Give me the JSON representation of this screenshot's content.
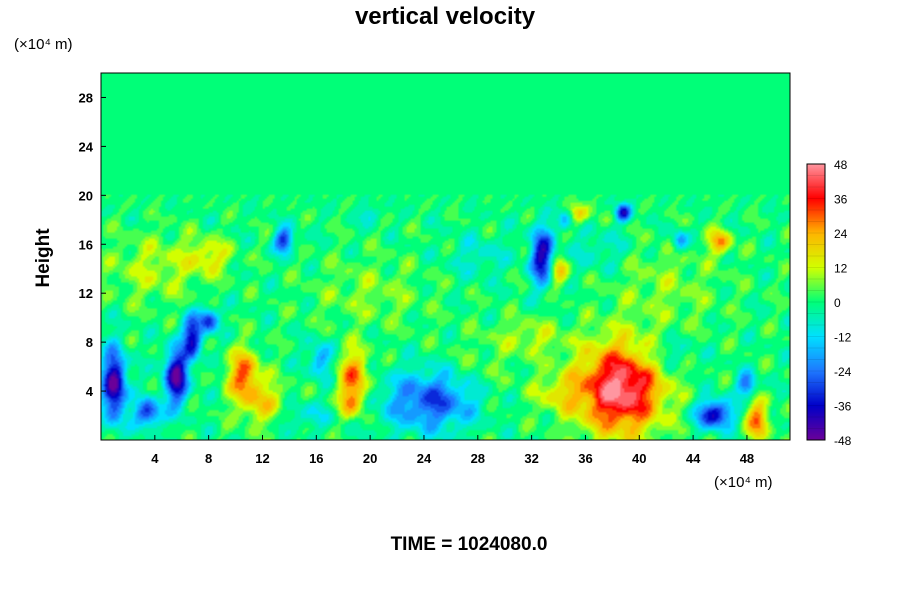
{
  "chart_data": {
    "type": "heatmap",
    "title": "vertical velocity",
    "xlabel_units": "(×10⁴ m)",
    "ylabel": "Height",
    "ylabel_units": "(×10⁴ m)",
    "xlim": [
      0,
      51.2
    ],
    "ylim": [
      0,
      30
    ],
    "x_ticks": [
      "4",
      "8",
      "12",
      "16",
      "20",
      "24",
      "28",
      "32",
      "36",
      "40",
      "44",
      "48"
    ],
    "x_tick_values": [
      4,
      8,
      12,
      16,
      20,
      24,
      28,
      32,
      36,
      40,
      44,
      48
    ],
    "y_ticks": [
      "4",
      "8",
      "12",
      "16",
      "20",
      "24",
      "28"
    ],
    "y_tick_values": [
      4,
      8,
      12,
      16,
      20,
      24,
      28
    ],
    "colorbar": {
      "ticks": [
        "48",
        "36",
        "24",
        "12",
        "0",
        "-12",
        "-24",
        "-36",
        "-48"
      ],
      "tick_values": [
        48,
        36,
        24,
        12,
        0,
        -12,
        -24,
        -36,
        -48
      ],
      "range": [
        -48,
        48
      ],
      "colormap": [
        "#6a0099",
        "#0000c8",
        "#1e78ff",
        "#00e0ff",
        "#00ff78",
        "#d2ff00",
        "#ffb400",
        "#ff0000",
        "#ff96a0"
      ]
    },
    "features": [
      {
        "x": 38.6,
        "y": 4.2,
        "sx": 2.2,
        "sy": 2.6,
        "value": 48
      },
      {
        "x": 10.6,
        "y": 5.4,
        "sx": 0.8,
        "sy": 1.4,
        "value": 30
      },
      {
        "x": 12.0,
        "y": 3.0,
        "sx": 1.3,
        "sy": 1.3,
        "value": 18
      },
      {
        "x": 18.8,
        "y": 5.2,
        "sx": 0.8,
        "sy": 1.5,
        "value": 28
      },
      {
        "x": 18.6,
        "y": 3.0,
        "sx": 0.7,
        "sy": 0.9,
        "value": 18
      },
      {
        "x": 32.0,
        "y": 8.4,
        "sx": 1.8,
        "sy": 1.1,
        "value": 10
      },
      {
        "x": 34.0,
        "y": 3.8,
        "sx": 1.4,
        "sy": 1.2,
        "value": 12
      },
      {
        "x": 48.8,
        "y": 1.6,
        "sx": 0.6,
        "sy": 1.2,
        "value": 28
      },
      {
        "x": 46.0,
        "y": 16.2,
        "sx": 0.6,
        "sy": 0.7,
        "value": 24
      },
      {
        "x": 35.5,
        "y": 18.5,
        "sx": 0.6,
        "sy": 0.6,
        "value": 20
      },
      {
        "x": 34.0,
        "y": 13.8,
        "sx": 0.5,
        "sy": 0.8,
        "value": 22
      },
      {
        "x": 4.0,
        "y": 14.0,
        "sx": 2.5,
        "sy": 2.0,
        "value": 10
      },
      {
        "x": 8.0,
        "y": 15.0,
        "sx": 1.2,
        "sy": 1.0,
        "value": 14
      },
      {
        "x": 20.0,
        "y": 12.0,
        "sx": 3.0,
        "sy": 2.0,
        "value": 7
      },
      {
        "x": 42.0,
        "y": 12.5,
        "sx": 3.0,
        "sy": 2.5,
        "value": 7
      },
      {
        "x": 28.0,
        "y": 4.5,
        "sx": 2.0,
        "sy": 2.5,
        "value": 7
      },
      {
        "x": 1.0,
        "y": 4.5,
        "sx": 0.6,
        "sy": 2.0,
        "value": -48
      },
      {
        "x": 5.6,
        "y": 5.2,
        "sx": 0.6,
        "sy": 1.6,
        "value": -46
      },
      {
        "x": 6.8,
        "y": 8.4,
        "sx": 0.5,
        "sy": 1.2,
        "value": -38
      },
      {
        "x": 8.0,
        "y": 9.8,
        "sx": 0.5,
        "sy": 0.7,
        "value": -32
      },
      {
        "x": 3.5,
        "y": 2.2,
        "sx": 0.7,
        "sy": 0.8,
        "value": -32
      },
      {
        "x": 24.8,
        "y": 3.2,
        "sx": 2.6,
        "sy": 1.7,
        "value": -30
      },
      {
        "x": 16.3,
        "y": 6.6,
        "sx": 0.6,
        "sy": 1.0,
        "value": -20
      },
      {
        "x": 45.6,
        "y": 2.1,
        "sx": 0.9,
        "sy": 0.8,
        "value": -40
      },
      {
        "x": 48.0,
        "y": 4.5,
        "sx": 0.5,
        "sy": 0.7,
        "value": -26
      },
      {
        "x": 32.8,
        "y": 15.0,
        "sx": 0.6,
        "sy": 1.6,
        "value": -40
      },
      {
        "x": 13.6,
        "y": 16.3,
        "sx": 0.5,
        "sy": 0.7,
        "value": -32
      },
      {
        "x": 38.8,
        "y": 18.6,
        "sx": 0.4,
        "sy": 0.5,
        "value": -36
      },
      {
        "x": 34.5,
        "y": 18.0,
        "sx": 0.4,
        "sy": 0.6,
        "value": -18
      },
      {
        "x": 43.0,
        "y": 16.3,
        "sx": 0.4,
        "sy": 0.6,
        "value": -22
      },
      {
        "x": 20.0,
        "y": 18.4,
        "sx": 0.5,
        "sy": 0.5,
        "value": -12
      },
      {
        "x": 28.0,
        "y": 15.0,
        "sx": 1.5,
        "sy": 1.2,
        "value": -8
      },
      {
        "x": 37.0,
        "y": 15.5,
        "sx": 1.5,
        "sy": 1.2,
        "value": -8
      },
      {
        "x": 15.0,
        "y": 2.0,
        "sx": 1.5,
        "sy": 0.8,
        "value": -10
      },
      {
        "x": 42.0,
        "y": 7.0,
        "sx": 1.5,
        "sy": 1.0,
        "value": -10
      }
    ],
    "footer": "TIME = 1024080.0"
  }
}
